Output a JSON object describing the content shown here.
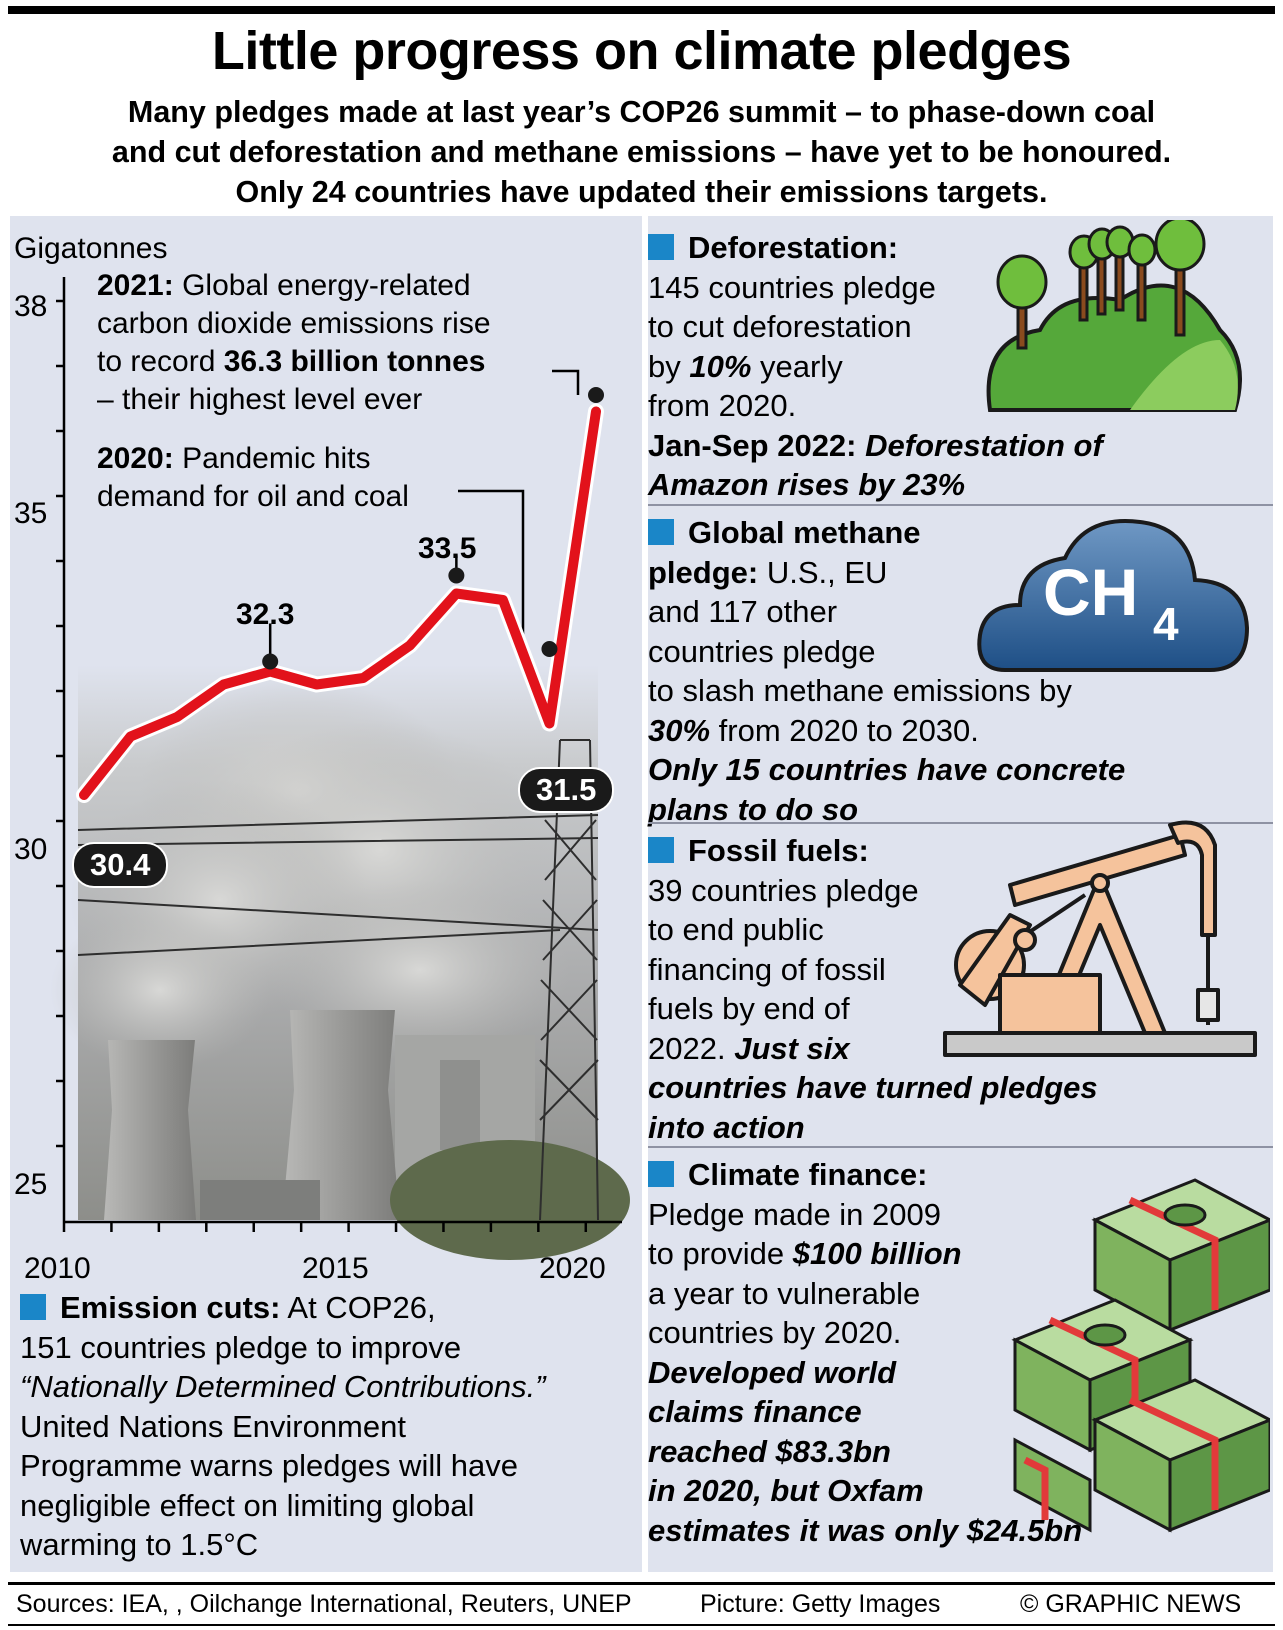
{
  "title": "Little progress on climate pledges",
  "intro": [
    "Many pledges made at last year’s COP26 summit – to phase-down coal",
    "and cut deforestation and methane emissions – have yet to be honoured.",
    "Only 24 countries have updated their emissions targets."
  ],
  "chart_data": {
    "type": "line",
    "ylabel": "Gigatonnes",
    "ylim": [
      25,
      38
    ],
    "yticks": [
      "38",
      "35",
      "30",
      "25"
    ],
    "xticks": [
      "2010",
      "2015",
      "2020"
    ],
    "x": [
      2010,
      2011,
      2012,
      2013,
      2014,
      2015,
      2016,
      2017,
      2018,
      2019,
      2020,
      2021
    ],
    "values": [
      30.4,
      31.3,
      31.6,
      32.1,
      32.3,
      32.1,
      32.2,
      32.7,
      33.5,
      33.4,
      31.5,
      36.3
    ],
    "color": "#e2121b",
    "data_labels": {
      "first": "30.4",
      "peak1": "32.3",
      "peak2": "33.5",
      "dip": "31.5"
    },
    "annotations": {
      "a2021_bold": "2021:",
      "a2021_l1": "Global energy-related",
      "a2021_l2": "carbon dioxide emissions rise",
      "a2021_l3a": "to record",
      "a2021_l3b": "36.3 billion tonnes",
      "a2021_l4": "– their highest level ever",
      "a2020_bold": "2020:",
      "a2020_l1": "Pandemic hits",
      "a2020_l2": "demand for oil and coal"
    }
  },
  "emission": {
    "head": "Emission cuts:",
    "l1": "At COP26,",
    "l2": "151 countries pledge to improve",
    "l3": "“Nationally Determined Contributions.”",
    "l4": "United Nations Environment",
    "l5": "Programme warns pledges will have",
    "l6": "negligible effect on limiting global",
    "l7": "warming to 1.5°C"
  },
  "deforestation": {
    "head": "Deforestation:",
    "l1": "145 countries pledge",
    "l2": "to cut deforestation",
    "l3a": "by",
    "l3b": "10%",
    "l3c": "yearly",
    "l4": "from 2020.",
    "l5a": "Jan-Sep 2022:",
    "l5b": "Deforestation of",
    "l6": "Amazon rises by 23%"
  },
  "methane": {
    "head": "Global methane",
    "head2": "pledge:",
    "l1": "U.S., EU",
    "l2": "and 117 other",
    "l3": "countries pledge",
    "l4": "to slash methane emissions by",
    "l5a": "30%",
    "l5b": "from 2020 to 2030.",
    "l6": "Only 15 countries have concrete",
    "l7": "plans to do so",
    "cloud_text": "CH",
    "cloud_sub": "4"
  },
  "fossil": {
    "head": "Fossil fuels:",
    "l1": "39 countries pledge",
    "l2": "to end public",
    "l3": "financing of fossil",
    "l4": "fuels by end of",
    "l5a": "2022.",
    "l5b": "Just six",
    "l6": "countries have turned pledges",
    "l7": "into action"
  },
  "finance": {
    "head": "Climate finance:",
    "l1": "Pledge made in 2009",
    "l2a": "to provide",
    "l2b": "$100 billion",
    "l3": "a year to vulnerable",
    "l4": "countries by 2020.",
    "l5": "Developed world",
    "l6": "claims finance",
    "l7": "reached $83.3bn",
    "l8": "in 2020, but Oxfam",
    "l9": "estimates it was only $24.5bn"
  },
  "footer": {
    "sources": "Sources: IEA, , Oilchange International, Reuters, UNEP",
    "picture": "Picture: Getty Images",
    "copyright": "© GRAPHIC NEWS"
  },
  "icons": {
    "deforestation": "forest-hill-icon",
    "methane": "ch4-cloud-icon",
    "fossil": "oil-pump-jack-icon",
    "finance": "cash-stacks-icon",
    "chart_photo": "power-plant-photo"
  }
}
